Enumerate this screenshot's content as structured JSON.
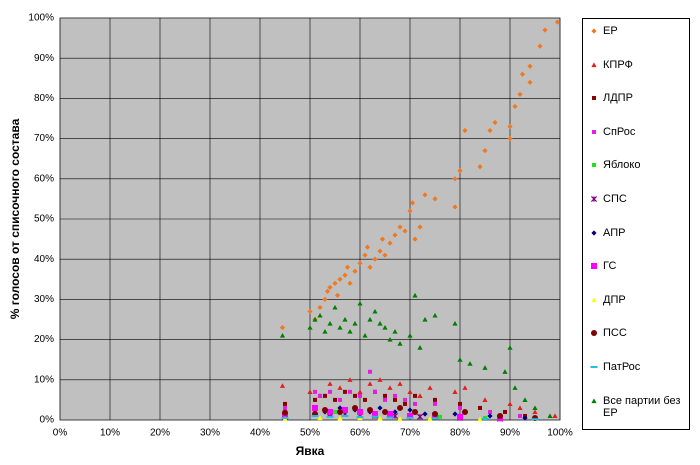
{
  "chart_data": {
    "type": "scatter",
    "xlabel": "Явка",
    "ylabel": "% голосов от списочного состава",
    "xlim": [
      0,
      100
    ],
    "ylim": [
      0,
      100
    ],
    "grid": true,
    "xticks": [
      {
        "value": 0,
        "label": "0%"
      },
      {
        "value": 10,
        "label": "10%"
      },
      {
        "value": 20,
        "label": "20%"
      },
      {
        "value": 30,
        "label": "30%"
      },
      {
        "value": 40,
        "label": "40%"
      },
      {
        "value": 50,
        "label": "50%"
      },
      {
        "value": 60,
        "label": "60%"
      },
      {
        "value": 70,
        "label": "70%"
      },
      {
        "value": 80,
        "label": "80%"
      },
      {
        "value": 90,
        "label": "90%"
      },
      {
        "value": 100,
        "label": "100%"
      }
    ],
    "yticks": [
      {
        "value": 0,
        "label": "0%"
      },
      {
        "value": 10,
        "label": "10%"
      },
      {
        "value": 20,
        "label": "20%"
      },
      {
        "value": 30,
        "label": "30%"
      },
      {
        "value": 40,
        "label": "40%"
      },
      {
        "value": 50,
        "label": "50%"
      },
      {
        "value": 60,
        "label": "60%"
      },
      {
        "value": 70,
        "label": "70%"
      },
      {
        "value": 80,
        "label": "80%"
      },
      {
        "value": 90,
        "label": "90%"
      },
      {
        "value": 100,
        "label": "100%"
      }
    ],
    "series": [
      {
        "name": "ЕР",
        "color": "#f07820",
        "marker": "diamond",
        "x": [
          44.5,
          50,
          51,
          52,
          53,
          53.5,
          54,
          55,
          55.5,
          56,
          57,
          57.5,
          58,
          59,
          60,
          61,
          61.5,
          62,
          63,
          64,
          64.5,
          65,
          66,
          67,
          68,
          69,
          70,
          70.5,
          71,
          72,
          73,
          75,
          79,
          79,
          80,
          81,
          84,
          85,
          86,
          87,
          90,
          90,
          91,
          92,
          92.5,
          94,
          94,
          96,
          97,
          99.5
        ],
        "values": [
          23,
          27,
          25,
          28,
          30,
          32,
          33,
          34,
          31,
          35,
          36,
          38,
          34,
          37,
          39,
          41,
          43,
          38,
          40,
          42,
          45,
          41,
          44,
          46,
          48,
          47,
          52,
          54,
          45,
          48,
          56,
          55,
          53,
          60,
          62,
          72,
          63,
          67,
          72,
          74,
          70,
          73,
          78,
          81,
          86,
          84,
          88,
          93,
          97,
          99
        ]
      },
      {
        "name": "КПРФ",
        "color": "#e02020",
        "marker": "triangle",
        "x": [
          44.5,
          50,
          52,
          54,
          56,
          58,
          60,
          62,
          64,
          66,
          68,
          70,
          72,
          74,
          79,
          81,
          85,
          90,
          92,
          95,
          99
        ],
        "values": [
          8.5,
          7,
          6,
          9,
          8,
          10,
          7,
          9,
          10,
          8,
          9,
          7,
          6,
          8,
          7,
          8,
          5,
          4,
          3,
          2,
          1
        ]
      },
      {
        "name": "ЛДПР",
        "color": "#8b0000",
        "marker": "square",
        "x": [
          45,
          51,
          53,
          55,
          57,
          59,
          61,
          63,
          65,
          67,
          69,
          71,
          75,
          80,
          84,
          89,
          93
        ],
        "values": [
          4,
          5,
          6,
          5,
          7,
          6,
          5,
          7,
          6,
          5,
          4,
          6,
          5,
          4,
          3,
          2,
          1
        ]
      },
      {
        "name": "СпРос",
        "color": "#e020e0",
        "marker": "square",
        "x": [
          45,
          51,
          52,
          54,
          56,
          58,
          60,
          62,
          63,
          65,
          67,
          69,
          71,
          75,
          80,
          86,
          92
        ],
        "values": [
          3,
          7,
          6,
          7,
          5,
          7,
          6,
          12,
          7,
          5,
          6,
          5,
          4,
          4,
          3,
          2,
          1
        ]
      },
      {
        "name": "Яблоко",
        "color": "#20e020",
        "marker": "square",
        "x": [
          45,
          51,
          53,
          55,
          57,
          60,
          63,
          66,
          70,
          76,
          85
        ],
        "values": [
          1,
          3,
          2.5,
          2,
          2,
          1.5,
          1.5,
          1,
          1,
          0.8,
          0.5
        ]
      },
      {
        "name": "СПС",
        "color": "#800080",
        "marker": "star",
        "x": [
          45,
          51,
          54,
          57,
          60,
          63,
          67,
          72,
          80,
          88
        ],
        "values": [
          0.8,
          2,
          1.5,
          1.5,
          1.2,
          1,
          1,
          0.8,
          0.5,
          0.3
        ]
      },
      {
        "name": "АПР",
        "color": "#000080",
        "marker": "diamond",
        "x": [
          45,
          51,
          53,
          56,
          59,
          62,
          64,
          67,
          70,
          73,
          79,
          86,
          93
        ],
        "values": [
          1.5,
          2.5,
          2,
          3,
          2.5,
          2,
          3,
          2,
          2.5,
          1.5,
          1.5,
          1,
          0.5
        ]
      },
      {
        "name": "ГС",
        "color": "#ff00ff",
        "marker": "bigsquare",
        "x": [
          45,
          51,
          54,
          57,
          60,
          63,
          66,
          70,
          75,
          80,
          88
        ],
        "values": [
          1,
          3,
          2,
          2.5,
          2,
          1.5,
          1.5,
          1,
          1,
          0.8,
          0.5
        ]
      },
      {
        "name": "ДПР",
        "color": "#ffff00",
        "marker": "triangle",
        "x": [
          45,
          52,
          56,
          60,
          64,
          68,
          74,
          84
        ],
        "values": [
          0.3,
          0.5,
          0.4,
          0.5,
          0.4,
          0.3,
          0.3,
          0.2
        ]
      },
      {
        "name": "ПСС",
        "color": "#800000",
        "marker": "circle",
        "x": [
          45,
          51,
          53,
          56,
          59,
          62,
          65,
          68,
          71,
          75,
          81,
          88,
          95
        ],
        "values": [
          1.8,
          1.5,
          2.5,
          2,
          3,
          2.5,
          2,
          3,
          2,
          1.5,
          2,
          1,
          0.5
        ]
      },
      {
        "name": "ПатРос",
        "color": "#20c0e0",
        "marker": "dash",
        "x": [
          45,
          51,
          54,
          57,
          60,
          63,
          66,
          70,
          75,
          85,
          95
        ],
        "values": [
          0.5,
          1,
          0.8,
          1,
          0.7,
          0.8,
          0.6,
          0.5,
          0.4,
          0.3,
          0.2
        ]
      },
      {
        "name": "Все партии без ЕР",
        "color": "#008000",
        "marker": "triangle",
        "x": [
          44.5,
          50,
          51,
          52,
          53,
          54,
          55,
          56,
          57,
          58,
          59,
          60,
          61,
          62,
          63,
          64,
          65,
          66,
          67,
          68,
          70,
          71,
          72,
          73,
          75,
          79,
          80,
          82,
          85,
          89,
          90,
          91,
          93,
          95,
          98
        ],
        "values": [
          21,
          23,
          25,
          26,
          22,
          24,
          28,
          23,
          25,
          22,
          24,
          29,
          21,
          25,
          27,
          24,
          23,
          20,
          22,
          19,
          21,
          31,
          18,
          25,
          26,
          24,
          15,
          14,
          13,
          12,
          18,
          8,
          5,
          3,
          1
        ]
      }
    ]
  }
}
